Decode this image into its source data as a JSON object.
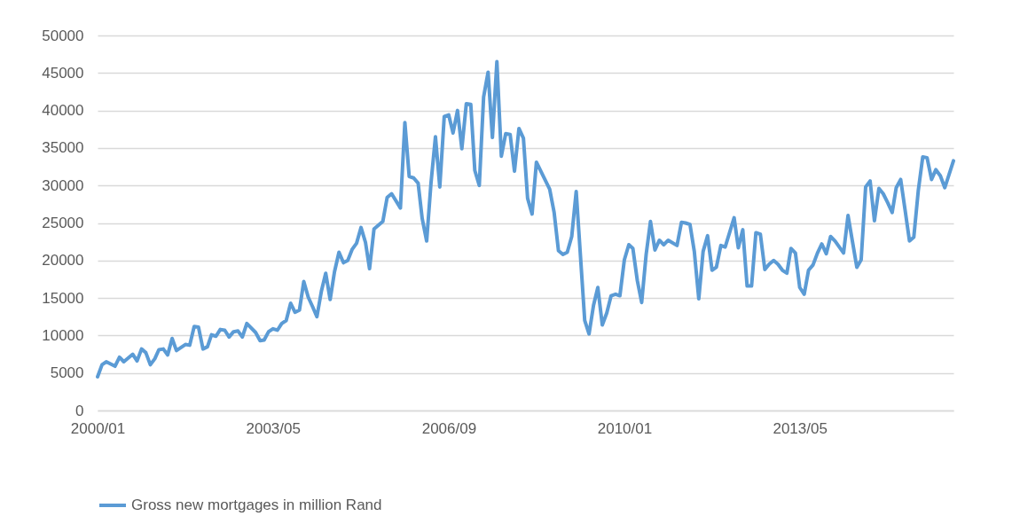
{
  "chart_data": {
    "type": "line",
    "x": [
      "2000-01",
      "2000-02",
      "2000-03",
      "2000-05",
      "2000-06",
      "2000-07",
      "2000-09",
      "2000-10",
      "2000-11",
      "2000-12",
      "2001-01",
      "2001-02",
      "2001-03",
      "2001-04",
      "2001-05",
      "2001-06",
      "2001-07",
      "2001-09",
      "2001-10",
      "2001-11",
      "2001-12",
      "2002-01",
      "2002-02",
      "2002-03",
      "2002-04",
      "2002-05",
      "2002-06",
      "2002-07",
      "2002-08",
      "2002-09",
      "2002-10",
      "2002-11",
      "2003-01",
      "2003-02",
      "2003-03",
      "2003-04",
      "2003-05",
      "2003-06",
      "2003-07",
      "2003-08",
      "2003-09",
      "2003-10",
      "2003-11",
      "2003-12",
      "2004-01",
      "2004-02",
      "2004-03",
      "2004-04",
      "2004-05",
      "2004-06",
      "2004-07",
      "2004-08",
      "2004-09",
      "2004-10",
      "2004-11",
      "2004-12",
      "2005-01",
      "2005-02",
      "2005-03",
      "2005-04",
      "2005-06",
      "2005-07",
      "2005-08",
      "2005-10",
      "2005-11",
      "2005-12",
      "2006-01",
      "2006-02",
      "2006-03",
      "2006-04",
      "2006-05",
      "2006-06",
      "2006-07",
      "2006-08",
      "2006-09",
      "2006-10",
      "2006-11",
      "2006-12",
      "2007-01",
      "2007-02",
      "2007-03",
      "2007-04",
      "2007-05",
      "2007-06",
      "2007-07",
      "2007-08",
      "2007-09",
      "2007-10",
      "2007-11",
      "2007-12",
      "2008-01",
      "2008-02",
      "2008-03",
      "2008-04",
      "2008-05",
      "2008-08",
      "2008-09",
      "2008-10",
      "2008-11",
      "2008-12",
      "2009-01",
      "2009-02",
      "2009-04",
      "2009-05",
      "2009-06",
      "2009-07",
      "2009-08",
      "2009-09",
      "2009-10",
      "2009-11",
      "2009-12",
      "2010-01",
      "2010-02",
      "2010-03",
      "2010-04",
      "2010-05",
      "2010-06",
      "2010-07",
      "2010-08",
      "2010-09",
      "2010-10",
      "2010-11",
      "2011-01",
      "2011-02",
      "2011-03",
      "2011-04",
      "2011-05",
      "2011-06",
      "2011-07",
      "2011-08",
      "2011-09",
      "2011-10",
      "2011-11",
      "2011-12",
      "2012-02",
      "2012-03",
      "2012-04",
      "2012-05",
      "2012-06",
      "2012-07",
      "2012-08",
      "2012-09",
      "2012-10",
      "2012-11",
      "2012-12",
      "2013-01",
      "2013-02",
      "2013-03",
      "2013-04",
      "2013-05",
      "2013-06",
      "2013-07",
      "2013-08",
      "2013-09",
      "2013-10",
      "2013-11",
      "2013-12",
      "2014-01",
      "2014-03",
      "2014-04",
      "2014-05",
      "2014-06",
      "2014-07",
      "2014-08",
      "2014-09",
      "2014-10",
      "2014-11",
      "2014-12",
      "2015-01",
      "2015-02",
      "2015-03",
      "2015-04",
      "2015-05",
      "2015-06",
      "2015-07",
      "2015-08",
      "2015-09",
      "2015-10",
      "2015-11",
      "2015-12",
      "2016-01",
      "2016-02",
      "2016-04"
    ],
    "series": [
      {
        "name": "Gross new mortgages in million Rand",
        "color": "#5b9bd5",
        "values": [
          4500,
          6100,
          6500,
          5900,
          7100,
          6500,
          7500,
          6600,
          8200,
          7700,
          6100,
          6900,
          8100,
          8200,
          7400,
          9600,
          8000,
          8800,
          8700,
          11200,
          11100,
          8200,
          8500,
          10100,
          9900,
          10800,
          10700,
          9800,
          10500,
          10600,
          9800,
          11600,
          10400,
          9300,
          9400,
          10500,
          10900,
          10700,
          11600,
          12000,
          14300,
          13100,
          13400,
          17200,
          15100,
          13800,
          12500,
          15900,
          18300,
          14800,
          18500,
          21100,
          19700,
          20000,
          21500,
          22300,
          24400,
          22400,
          18900,
          24200,
          25200,
          28400,
          28900,
          27000,
          38400,
          31200,
          31000,
          30300,
          25600,
          22600,
          30300,
          36500,
          29800,
          39200,
          39400,
          37000,
          40000,
          34900,
          40900,
          40800,
          32000,
          30000,
          41800,
          45100,
          36400,
          46500,
          33900,
          36900,
          36800,
          31900,
          37600,
          36300,
          28300,
          26200,
          33100,
          29500,
          26400,
          21300,
          20800,
          21100,
          23200,
          29200,
          12000,
          10200,
          14000,
          16400,
          11400,
          13000,
          15300,
          15500,
          15300,
          20100,
          22100,
          21600,
          17300,
          14400,
          20800,
          25200,
          21400,
          22700,
          22100,
          22700,
          22000,
          25100,
          25000,
          24800,
          21200,
          14900,
          21200,
          23300,
          18700,
          19100,
          22000,
          21800,
          25700,
          21700,
          24100,
          16600,
          16600,
          23700,
          23500,
          18800,
          19500,
          20000,
          19500,
          18700,
          18300,
          21600,
          21000,
          16400,
          15500,
          18700,
          19400,
          21000,
          22200,
          20900,
          23200,
          22600,
          21000,
          26000,
          22600,
          19100,
          20100,
          29800,
          30600,
          25300,
          29600,
          28900,
          27700,
          26400,
          29700,
          30800,
          26800,
          22600,
          23100,
          29300,
          33800,
          33700,
          30800,
          32100,
          31300,
          29700,
          33300
        ]
      }
    ],
    "xlim": [
      "2000-01",
      "2016-04"
    ],
    "xticks": [
      {
        "value": "2000-01",
        "label": "2000/01"
      },
      {
        "value": "2003-05",
        "label": "2003/05"
      },
      {
        "value": "2006-09",
        "label": "2006/09"
      },
      {
        "value": "2010-01",
        "label": "2010/01"
      },
      {
        "value": "2013-05",
        "label": "2013/05"
      }
    ],
    "ylim": [
      0,
      50000
    ],
    "yticks": [
      0,
      5000,
      10000,
      15000,
      20000,
      25000,
      30000,
      35000,
      40000,
      45000,
      50000
    ],
    "grid": "y",
    "legend": "bottom",
    "marker": "none",
    "line_style": "solid"
  }
}
